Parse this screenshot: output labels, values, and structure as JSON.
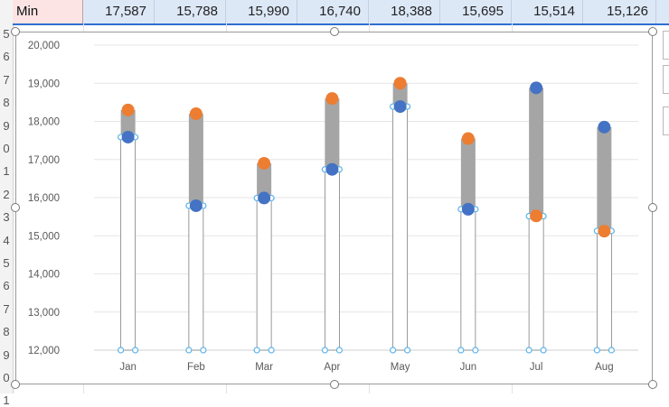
{
  "row": {
    "label": "Min",
    "values": [
      "17,587",
      "15,788",
      "15,990",
      "16,740",
      "18,388",
      "15,695",
      "15,514",
      "15,126"
    ]
  },
  "row_headers": [
    "5",
    "6",
    "7",
    "8",
    "9",
    "0",
    "1",
    "2",
    "3",
    "4",
    "5",
    "6",
    "7",
    "8",
    "9",
    "0",
    "1"
  ],
  "chart_data": {
    "type": "line",
    "categories": [
      "Jan",
      "Feb",
      "Mar",
      "Apr",
      "May",
      "Jun",
      "Jul",
      "Aug"
    ],
    "ylim": [
      12000,
      20000
    ],
    "yticks": [
      "12,000",
      "13,000",
      "14,000",
      "15,000",
      "16,000",
      "17,000",
      "18,000",
      "19,000",
      "20,000"
    ],
    "series": [
      {
        "color": "#ed7d31",
        "values": [
          18300,
          18200,
          16900,
          18600,
          19000,
          17550,
          15520,
          15120
        ]
      },
      {
        "color": "#4472c4",
        "values": [
          17587,
          15788,
          15990,
          16740,
          18388,
          15695,
          18880,
          17850
        ]
      }
    ],
    "min_values": [
      17587,
      15788,
      15990,
      16740,
      18388,
      15695,
      15514,
      15126
    ],
    "colors": {
      "bar": "#a5a5a5",
      "orange": "#ed7d31",
      "blue": "#4472c4",
      "selection": "#5ab4e8"
    }
  }
}
